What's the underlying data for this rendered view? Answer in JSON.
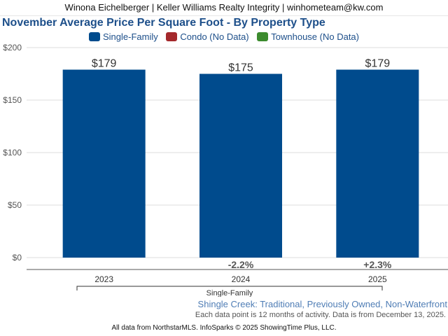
{
  "header": {
    "text": "Winona Eichelberger | Keller Williams Realty Integrity | winhometeam@kw.com"
  },
  "chart_data": {
    "type": "bar",
    "title": "November Average Price Per Square Foot - By Property Type",
    "categories": [
      "2023",
      "2024",
      "2025"
    ],
    "series": [
      {
        "name": "Single-Family",
        "values": [
          179,
          175,
          179
        ],
        "color": "#004b8d"
      }
    ],
    "data_labels": [
      "$179",
      "$175",
      "$179"
    ],
    "change_labels": [
      "",
      "-2.2%",
      "+2.3%"
    ],
    "legend": [
      {
        "label": "Single-Family",
        "color": "#004b8d"
      },
      {
        "label": "Condo (No Data)",
        "color": "#a4282b"
      },
      {
        "label": "Townhouse (No Data)",
        "color": "#3c8b2e"
      }
    ],
    "y_ticks": [
      0,
      50,
      100,
      150,
      200
    ],
    "y_tick_labels": [
      "$0",
      "$50",
      "$100",
      "$150",
      "$200"
    ],
    "ylim": [
      0,
      200
    ],
    "group_label": "Single-Family",
    "grid": true,
    "legend_position": "top-center"
  },
  "area_text": "Shingle Creek: Traditional, Previously Owned, Non-Waterfront",
  "note_text": "Each data point is 12 months of activity. Data is from December 13, 2025.",
  "source_text": "All data from NorthstarMLS. InfoSparks © 2025 ShowingTime Plus, LLC."
}
